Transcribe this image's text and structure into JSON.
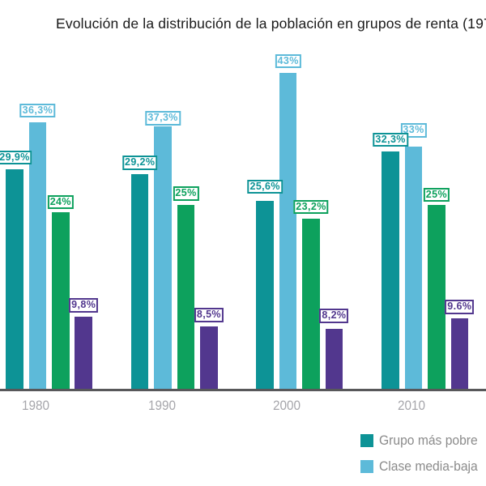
{
  "chart_data": {
    "type": "bar",
    "title": "Evolución de la distribución de la población en grupos de renta (19",
    "title_partial_char": "7",
    "categories": [
      "1980",
      "1990",
      "2000",
      "2010"
    ],
    "series": [
      {
        "name": "Grupo más pobre",
        "color": "#0d9396",
        "values": [
          29.9,
          29.2,
          25.6,
          32.3
        ],
        "labels": [
          "29,9%",
          "29,2%",
          "25,6%",
          "32,3%"
        ]
      },
      {
        "name": "Clase media-baja",
        "color": "#5dbad9",
        "values": [
          36.3,
          37.3,
          43,
          33
        ],
        "labels": [
          "36,3%",
          "37,3%",
          "43%",
          "33%"
        ]
      },
      {
        "name": "",
        "color": "#0da15d",
        "values": [
          24,
          25,
          23.2,
          25
        ],
        "labels": [
          "24%",
          "25%",
          "23,2%",
          "25%"
        ]
      },
      {
        "name": "",
        "color": "#52378e",
        "values": [
          9.8,
          8.5,
          8.2,
          9.6
        ],
        "labels": [
          "9,8%",
          "8,5%",
          "8,2%",
          "9.6%"
        ]
      }
    ],
    "ylabel": "",
    "xlabel": "",
    "ylim": [
      0,
      52
    ],
    "grid": false,
    "legend_position": "bottom-right",
    "legend_items": [
      {
        "label": "Grupo más pobre",
        "color": "#0d9396"
      },
      {
        "label": "Clase media-baja",
        "color": "#5dbad9"
      }
    ],
    "axis_color": "#58585a",
    "year_label_color": "#a6a6ab",
    "legend_text_color": "#8b8b8b",
    "title_color": "#1a1a1a"
  }
}
